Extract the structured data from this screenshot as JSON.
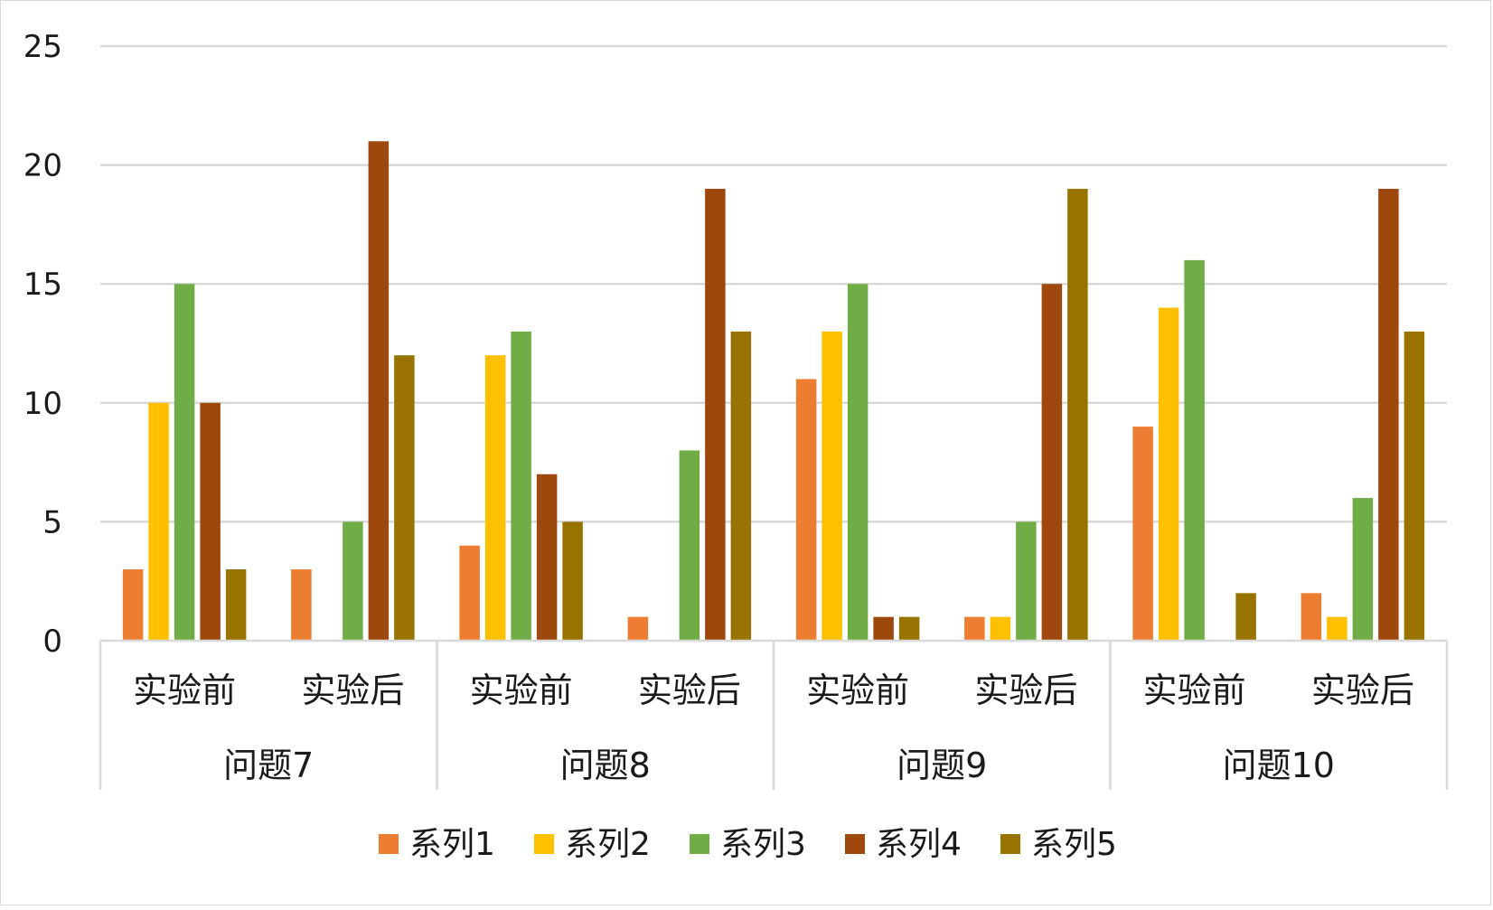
{
  "chart_data": {
    "type": "bar",
    "title": "",
    "xlabel": "",
    "ylabel": "",
    "ylim": [
      0,
      25
    ],
    "yticks": [
      0,
      5,
      10,
      15,
      20,
      25
    ],
    "grid": true,
    "legend_position": "bottom",
    "groups": [
      {
        "label": "问题7",
        "subcategories": [
          "实验前",
          "实验后"
        ]
      },
      {
        "label": "问题8",
        "subcategories": [
          "实验前",
          "实验后"
        ]
      },
      {
        "label": "问题9",
        "subcategories": [
          "实验前",
          "实验后"
        ]
      },
      {
        "label": "问题10",
        "subcategories": [
          "实验前",
          "实验后"
        ]
      }
    ],
    "series": [
      {
        "name": "系列1",
        "color": "#ED7D31",
        "values": [
          3,
          3,
          4,
          1,
          11,
          1,
          9,
          2
        ]
      },
      {
        "name": "系列2",
        "color": "#FFC000",
        "values": [
          10,
          0,
          12,
          0,
          13,
          1,
          14,
          1
        ]
      },
      {
        "name": "系列3",
        "color": "#70AD47",
        "values": [
          15,
          5,
          13,
          8,
          15,
          5,
          16,
          6
        ]
      },
      {
        "name": "系列4",
        "color": "#9E480E",
        "values": [
          10,
          21,
          7,
          19,
          1,
          15,
          0,
          19
        ]
      },
      {
        "name": "系列5",
        "color": "#997300",
        "values": [
          3,
          12,
          5,
          13,
          1,
          19,
          2,
          13
        ]
      }
    ]
  }
}
